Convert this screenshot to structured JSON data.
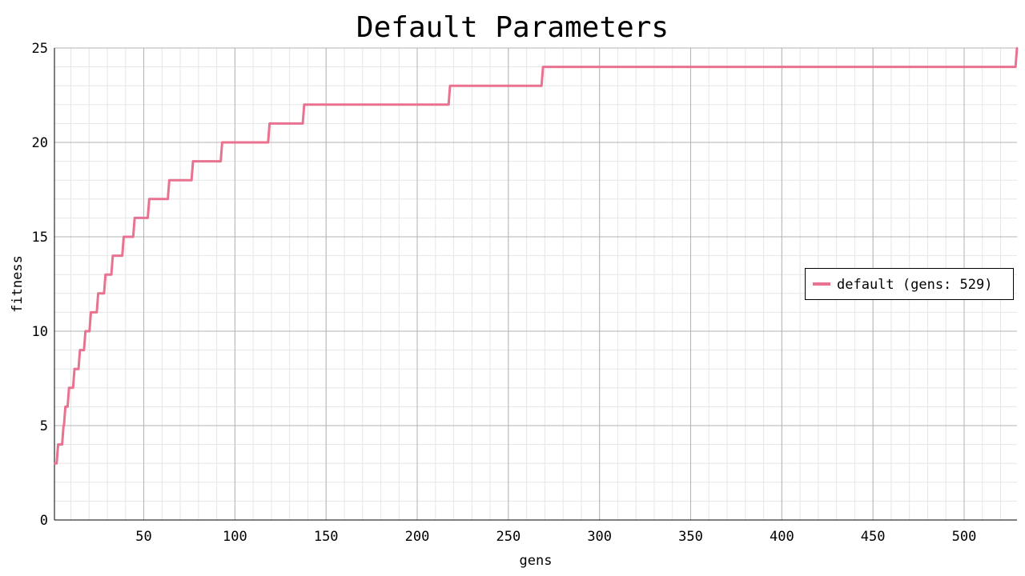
{
  "chart_data": {
    "type": "line",
    "title": "Default Parameters",
    "xlabel": "gens",
    "ylabel": "fitness",
    "xlim": [
      1,
      529
    ],
    "ylim": [
      0,
      25
    ],
    "x_ticks": [
      50,
      100,
      150,
      200,
      250,
      300,
      350,
      400,
      450,
      500
    ],
    "y_ticks": [
      0,
      5,
      10,
      15,
      20,
      25
    ],
    "x_minor_step": 10,
    "y_minor_step": 1,
    "grid": true,
    "legend_position": "right",
    "series": [
      {
        "name": "default (gens: 529)",
        "color": "#e8728f",
        "steps": [
          {
            "x": 1,
            "y": 3
          },
          {
            "x": 3,
            "y": 4
          },
          {
            "x": 6,
            "y": 5
          },
          {
            "x": 7,
            "y": 6
          },
          {
            "x": 9,
            "y": 7
          },
          {
            "x": 12,
            "y": 8
          },
          {
            "x": 15,
            "y": 9
          },
          {
            "x": 18,
            "y": 10
          },
          {
            "x": 21,
            "y": 11
          },
          {
            "x": 25,
            "y": 12
          },
          {
            "x": 29,
            "y": 13
          },
          {
            "x": 33,
            "y": 14
          },
          {
            "x": 39,
            "y": 15
          },
          {
            "x": 45,
            "y": 16
          },
          {
            "x": 53,
            "y": 17
          },
          {
            "x": 64,
            "y": 18
          },
          {
            "x": 77,
            "y": 19
          },
          {
            "x": 93,
            "y": 20
          },
          {
            "x": 119,
            "y": 21
          },
          {
            "x": 138,
            "y": 22
          },
          {
            "x": 218,
            "y": 23
          },
          {
            "x": 269,
            "y": 24
          },
          {
            "x": 529,
            "y": 25
          }
        ]
      }
    ]
  }
}
